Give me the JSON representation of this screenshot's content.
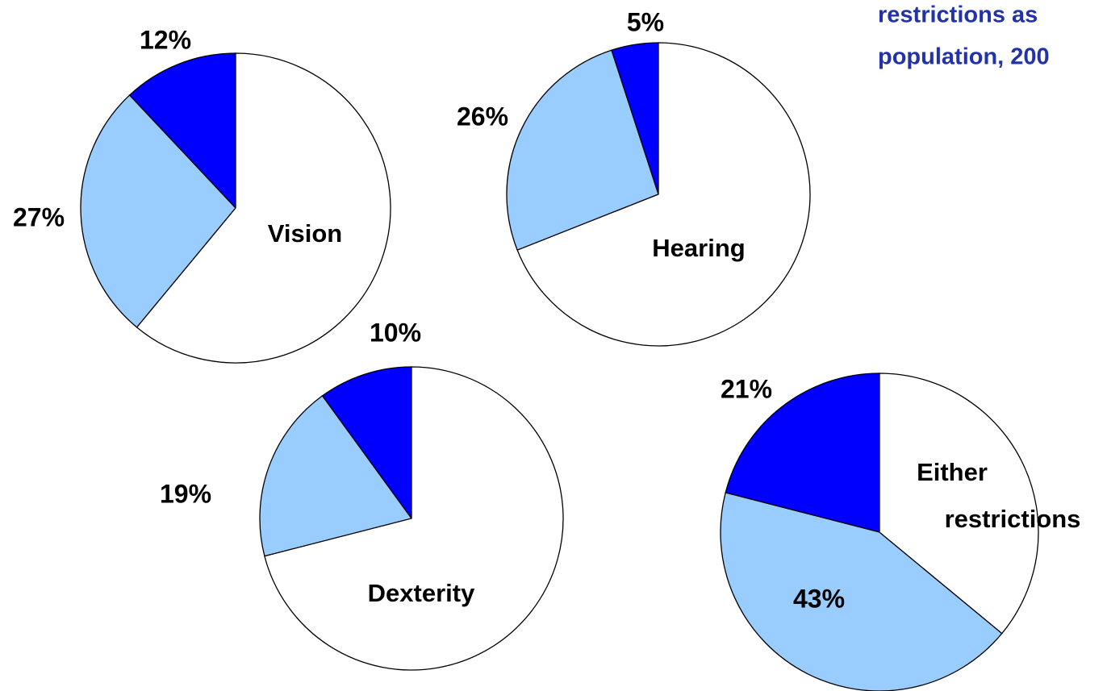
{
  "title_lines": [
    "restrictions as",
    "population, 200"
  ],
  "chart_data": [
    {
      "type": "pie",
      "label_lines": [
        "Vision"
      ],
      "categories": [
        null,
        null,
        null
      ],
      "values": [
        12,
        27,
        61
      ],
      "value_labels": [
        "12%",
        "27%",
        null
      ],
      "colors": [
        "#0000ff",
        "#99ccff",
        "#ffffff"
      ]
    },
    {
      "type": "pie",
      "label_lines": [
        "Hearing"
      ],
      "categories": [
        null,
        null,
        null
      ],
      "values": [
        5,
        26,
        69
      ],
      "value_labels": [
        "5%",
        "26%",
        null
      ],
      "colors": [
        "#0000ff",
        "#99ccff",
        "#ffffff"
      ]
    },
    {
      "type": "pie",
      "label_lines": [
        "Dexterity"
      ],
      "categories": [
        null,
        null,
        null
      ],
      "values": [
        10,
        19,
        71
      ],
      "value_labels": [
        "10%",
        "19%",
        null
      ],
      "colors": [
        "#0000ff",
        "#99ccff",
        "#ffffff"
      ]
    },
    {
      "type": "pie",
      "label_lines": [
        "Either",
        "restrictions"
      ],
      "categories": [
        null,
        null,
        null
      ],
      "values": [
        21,
        43,
        36
      ],
      "value_labels": [
        "21%",
        "43%",
        null
      ],
      "colors": [
        "#0000ff",
        "#99ccff",
        "#ffffff"
      ]
    }
  ]
}
